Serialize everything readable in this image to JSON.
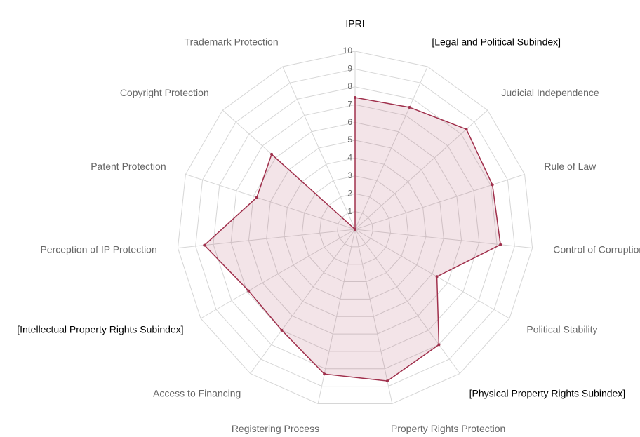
{
  "chart_data": {
    "type": "radar",
    "categories": [
      "IPRI",
      "[Legal and Political Subindex]",
      "Judicial Independence",
      "Rule of Law",
      "Control of Corruption",
      "Political Stability",
      "[Physical Property Rights Subindex]",
      "Property Rights Protection",
      "Registering Process",
      "Access to Financing",
      "[Intellectual Property Rights Subindex]",
      "Perception of IP Protection",
      "Patent Protection",
      "Copyright Protection",
      "Trademark Protection"
    ],
    "label_colors": [
      "#000000",
      "#000000",
      "#666666",
      "#666666",
      "#666666",
      "#666666",
      "#000000",
      "#666666",
      "#666666",
      "#666666",
      "#000000",
      "#666666",
      "#666666",
      "#666666",
      "#666666"
    ],
    "series": [
      {
        "color": "#a0304c",
        "values": [
          7.4,
          7.5,
          8.4,
          8.1,
          8.2,
          5.3,
          8.0,
          8.7,
          8.3,
          7.0,
          6.9,
          8.5,
          5.8,
          6.3,
          0
        ]
      }
    ],
    "ylim": [
      0,
      10
    ],
    "yticks": [
      1,
      2,
      3,
      4,
      5,
      6,
      7,
      8,
      9,
      10
    ],
    "grid": true
  }
}
